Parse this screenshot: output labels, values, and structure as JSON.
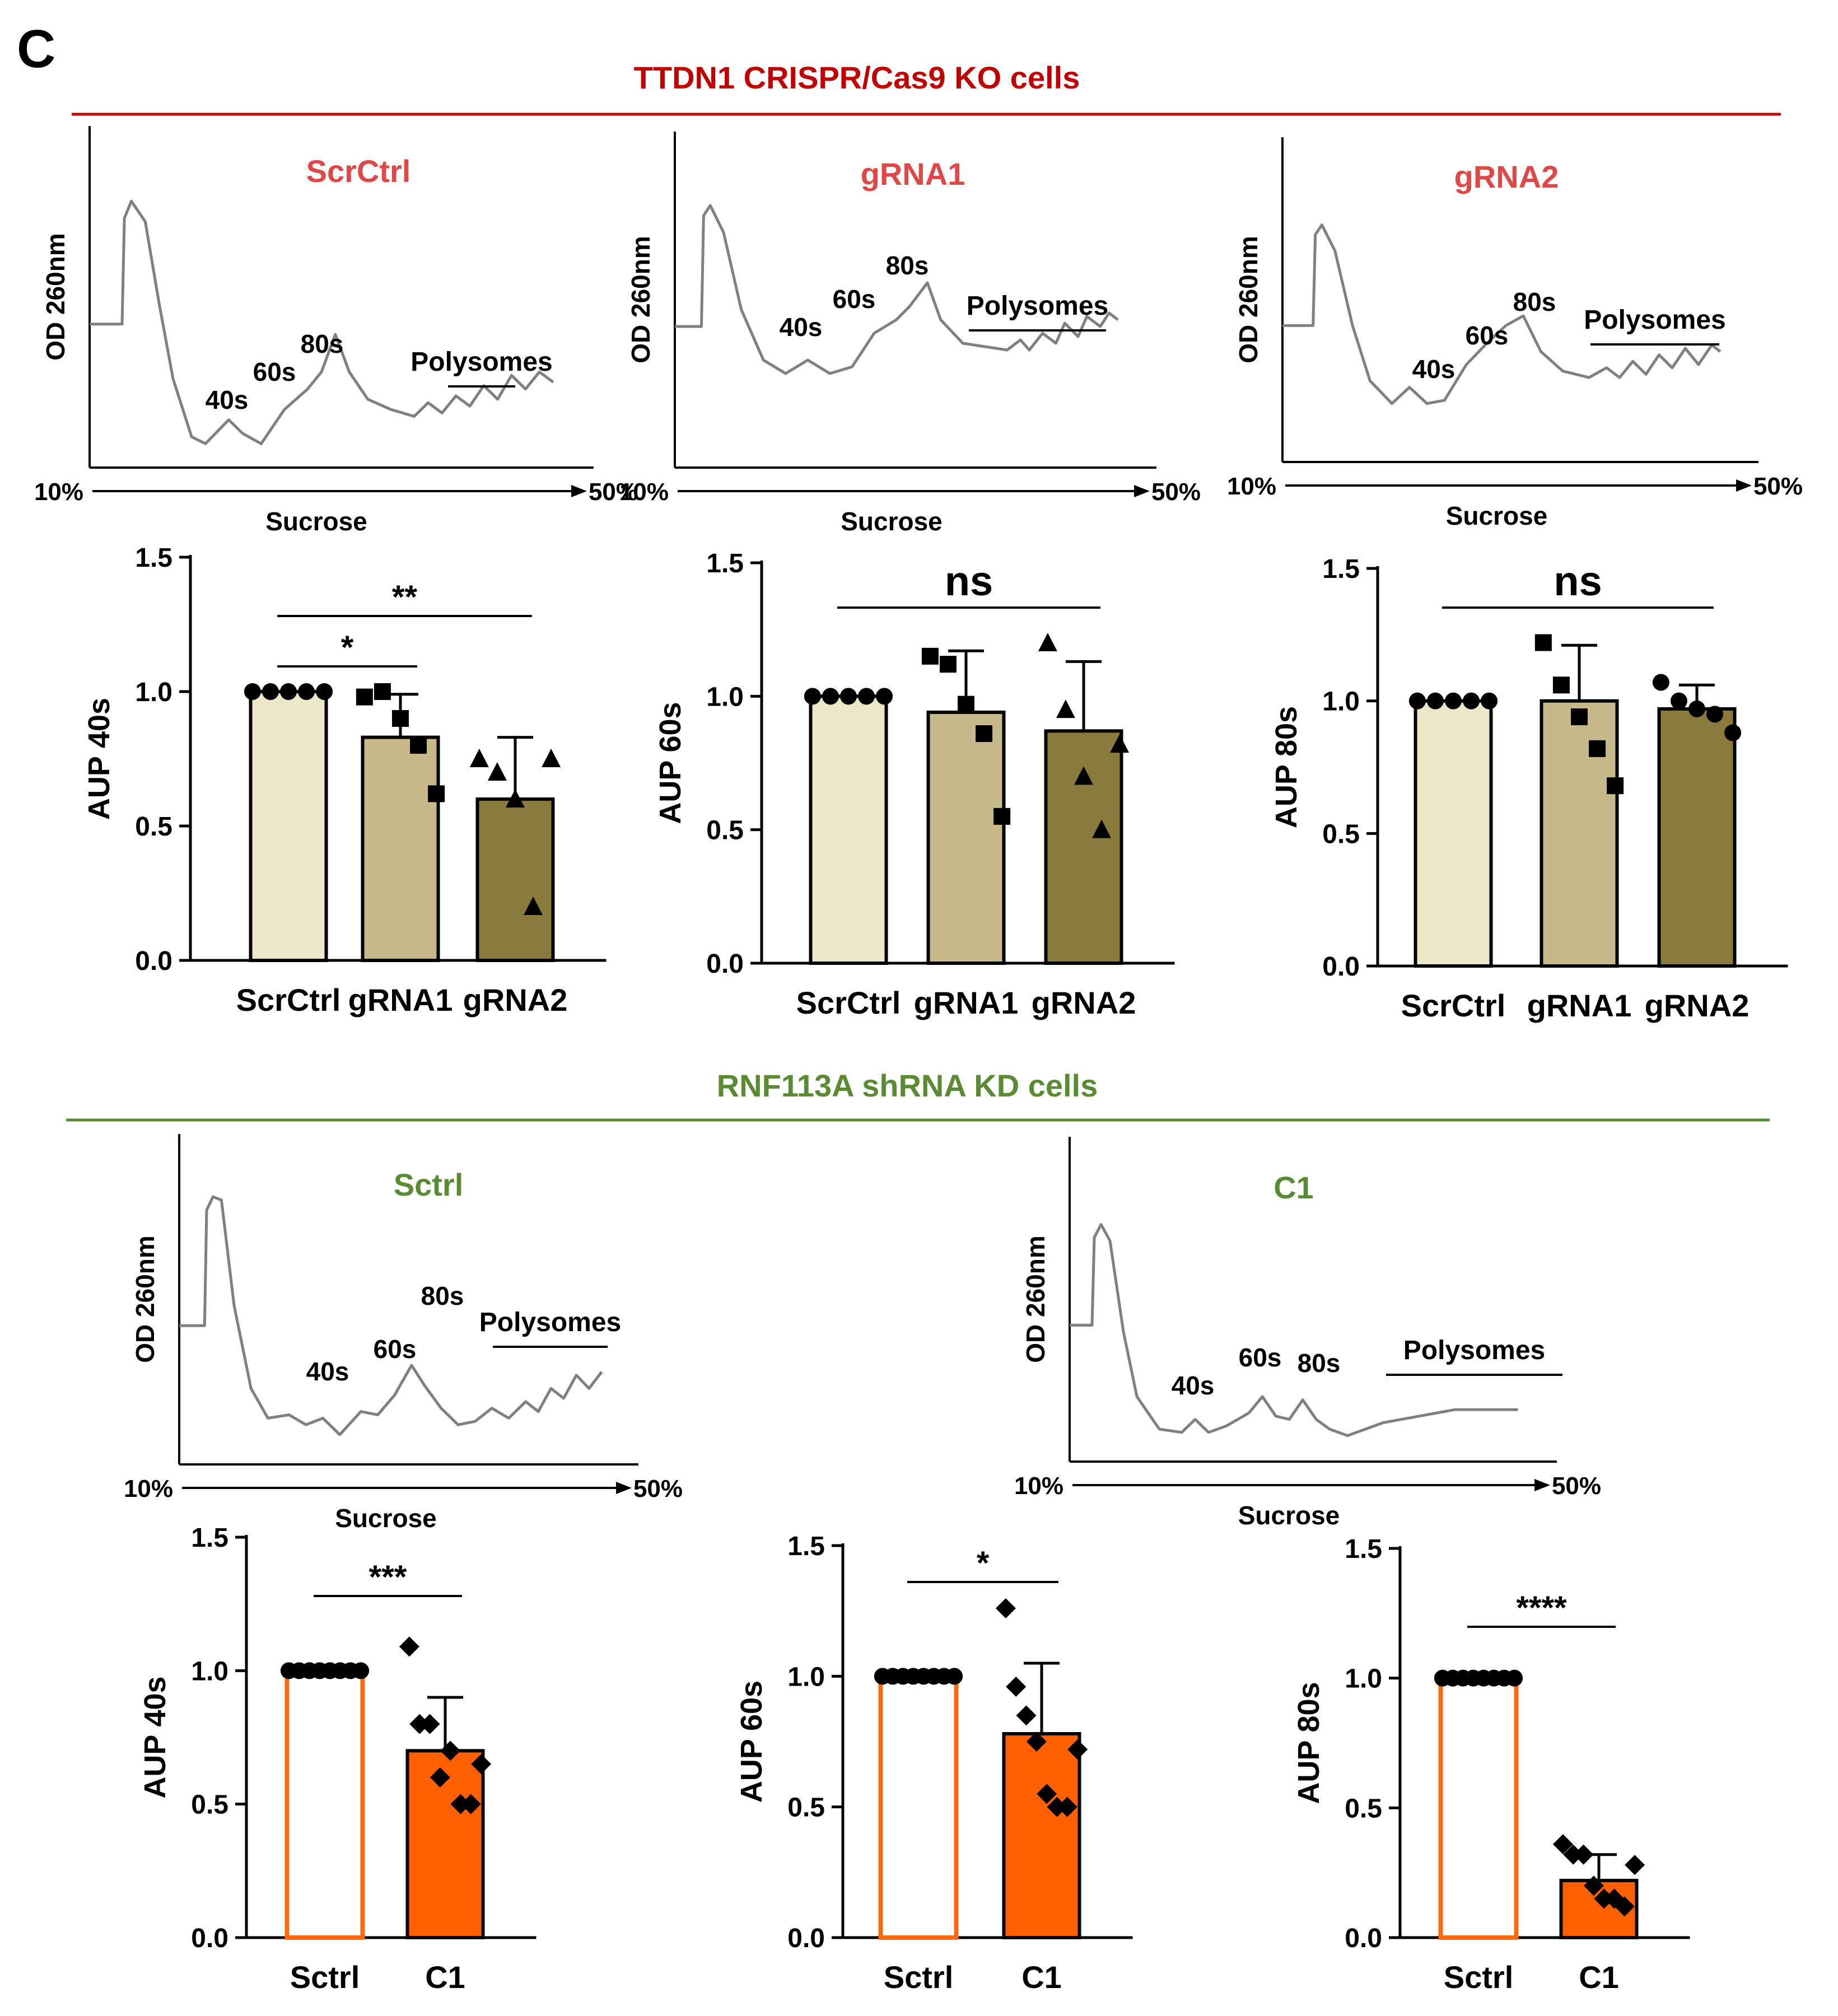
{
  "panel_letter": "C",
  "sections": [
    {
      "title": "TTDN1 CRISPR/Cas9 KO cells",
      "color": "#c00000"
    },
    {
      "title": "RNF113A shRNA KD  cells",
      "color": "#5a8a32"
    }
  ],
  "colors": {
    "trace": "#808080",
    "crispr_title": "#e04848",
    "shrna_title": "#5a8a32",
    "scr_fill": "#ede6c9",
    "g1_fill": "#c7b98a",
    "g2_fill": "#8a7a3c",
    "orange": "#ff6000",
    "orange_stroke": "#ff6a10"
  },
  "axis_common": {
    "profile_ylabel": "OD 260nm",
    "profile_xlabel": "Sucrose",
    "profile_left": "10%",
    "profile_right": "50%",
    "peak_labels": [
      "40s",
      "60s",
      "80s"
    ],
    "polysome_label": "Polysomes",
    "bar_ticks": [
      "0.0",
      "0.5",
      "1.0",
      "1.5"
    ]
  },
  "profiles": [
    {
      "title": "ScrCtrl",
      "group": "crispr"
    },
    {
      "title": "gRNA1",
      "group": "crispr"
    },
    {
      "title": "gRNA2",
      "group": "crispr"
    },
    {
      "title": "Sctrl",
      "group": "shrna"
    },
    {
      "title": "C1",
      "group": "shrna"
    }
  ],
  "chart_data": [
    {
      "type": "bar",
      "ylabel": "AUP 40s",
      "ylim": [
        0,
        1.5
      ],
      "categories": [
        "ScrCtrl",
        "gRNA1",
        "gRNA2"
      ],
      "values": [
        1.0,
        0.83,
        0.6
      ],
      "error": [
        0,
        0.16,
        0.23
      ],
      "points": [
        [
          1,
          1,
          1,
          1,
          1
        ],
        [
          0.98,
          1.0,
          0.9,
          0.8,
          0.62
        ],
        [
          0.75,
          0.7,
          0.6,
          0.2,
          0.75
        ]
      ],
      "significance": [
        {
          "from": 0,
          "to": 1,
          "label": "*"
        },
        {
          "from": 0,
          "to": 2,
          "label": "**"
        }
      ]
    },
    {
      "type": "bar",
      "ylabel": "AUP 60s",
      "ylim": [
        0,
        1.5
      ],
      "categories": [
        "ScrCtrl",
        "gRNA1",
        "gRNA2"
      ],
      "values": [
        1.0,
        0.94,
        0.87
      ],
      "error": [
        0,
        0.23,
        0.26
      ],
      "points": [
        [
          1,
          1,
          1,
          1,
          1
        ],
        [
          1.15,
          1.12,
          0.97,
          0.86,
          0.55
        ],
        [
          1.2,
          0.95,
          0.7,
          0.5,
          0.82
        ]
      ],
      "significance": [
        {
          "from": 0,
          "to": 2,
          "label": "ns"
        }
      ]
    },
    {
      "type": "bar",
      "ylabel": "AUP 80s",
      "ylim": [
        0,
        1.5
      ],
      "categories": [
        "ScrCtrl",
        "gRNA1",
        "gRNA2"
      ],
      "values": [
        1.0,
        1.0,
        0.97
      ],
      "error": [
        0,
        0.21,
        0.09
      ],
      "points": [
        [
          1,
          1,
          1,
          1,
          1
        ],
        [
          1.22,
          1.06,
          0.94,
          0.82,
          0.68
        ],
        [
          1.07,
          1.0,
          0.97,
          0.95,
          0.88
        ]
      ],
      "significance": [
        {
          "from": 0,
          "to": 2,
          "label": "ns"
        }
      ]
    },
    {
      "type": "bar",
      "ylabel": "AUP 40s",
      "ylim": [
        0,
        1.5
      ],
      "categories": [
        "Sctrl",
        "C1"
      ],
      "values": [
        1.0,
        0.7
      ],
      "error": [
        0,
        0.2
      ],
      "points": [
        [
          1,
          1,
          1,
          1,
          1,
          1,
          1,
          1
        ],
        [
          1.09,
          0.8,
          0.8,
          0.6,
          0.7,
          0.5,
          0.5,
          0.65
        ]
      ],
      "significance": [
        {
          "from": 0,
          "to": 1,
          "label": "***"
        }
      ]
    },
    {
      "type": "bar",
      "ylabel": "AUP 60s",
      "ylim": [
        0,
        1.5
      ],
      "categories": [
        "Sctrl",
        "C1"
      ],
      "values": [
        1.0,
        0.78
      ],
      "error": [
        0,
        0.27
      ],
      "points": [
        [
          1,
          1,
          1,
          1,
          1,
          1,
          1,
          1
        ],
        [
          1.26,
          0.96,
          0.85,
          0.75,
          0.55,
          0.5,
          0.5,
          0.72
        ]
      ],
      "significance": [
        {
          "from": 0,
          "to": 1,
          "label": "*"
        }
      ]
    },
    {
      "type": "bar",
      "ylabel": "AUP 80s",
      "ylim": [
        0,
        1.5
      ],
      "categories": [
        "Sctrl",
        "C1"
      ],
      "values": [
        1.0,
        0.22
      ],
      "error": [
        0,
        0.1
      ],
      "points": [
        [
          1,
          1,
          1,
          1,
          1,
          1,
          1,
          1
        ],
        [
          0.36,
          0.32,
          0.32,
          0.2,
          0.15,
          0.15,
          0.12,
          0.28
        ]
      ],
      "significance": [
        {
          "from": 0,
          "to": 1,
          "label": "****"
        }
      ]
    }
  ]
}
